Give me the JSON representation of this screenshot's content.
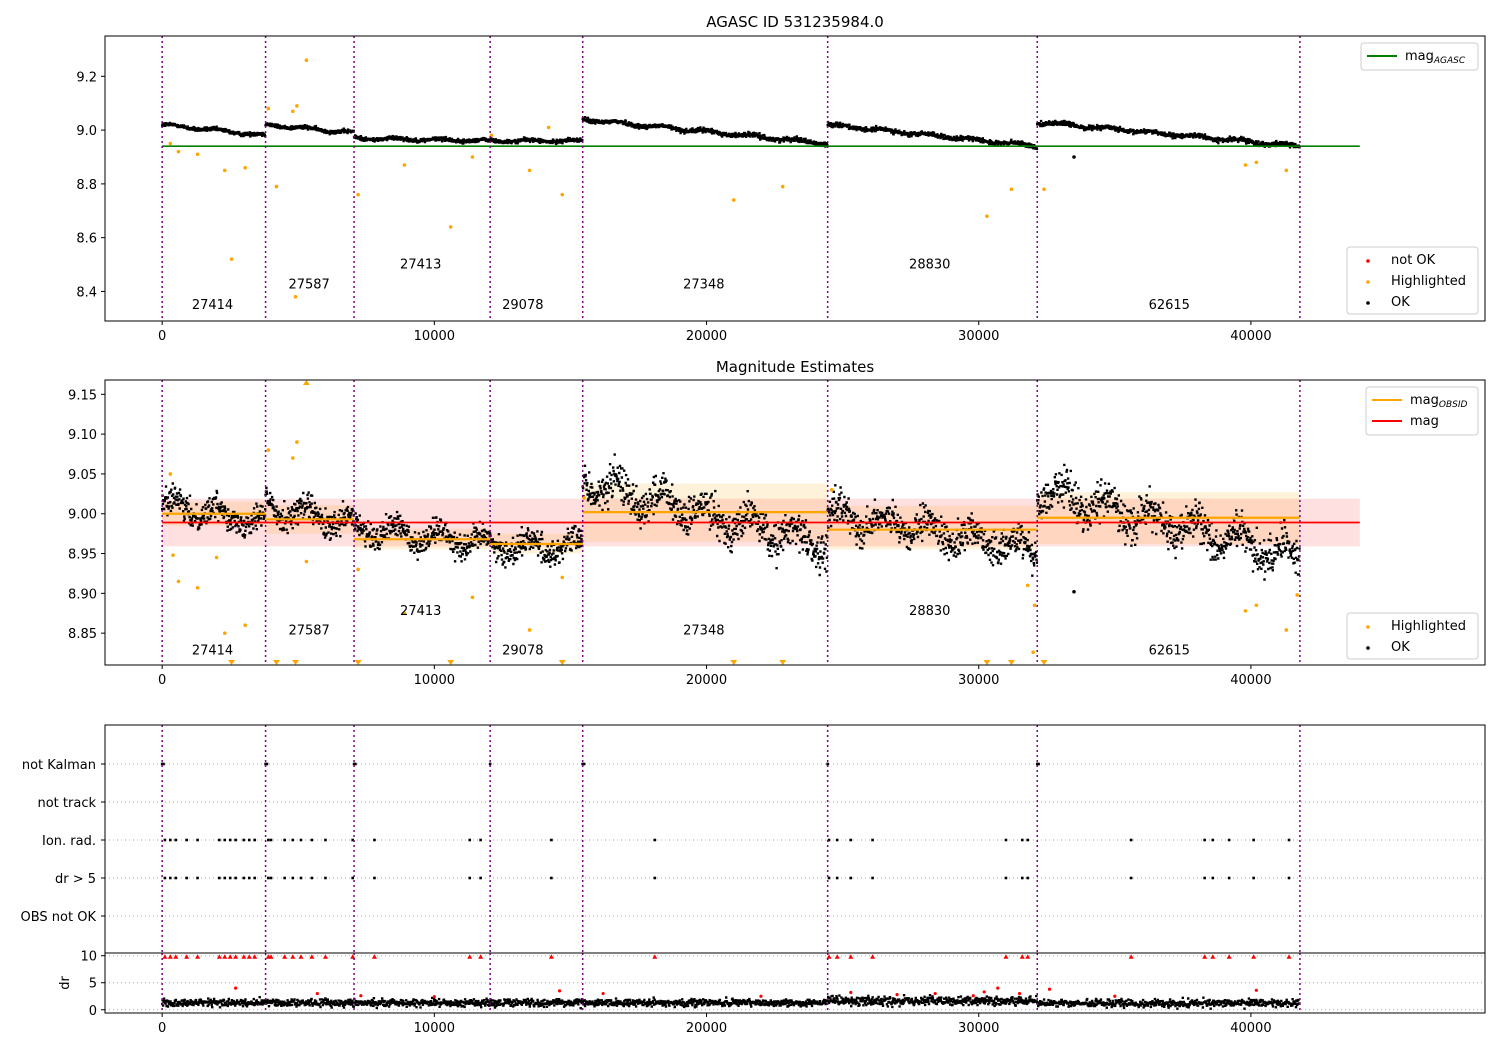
{
  "chart_data": [
    {
      "type": "scatter",
      "title": "AGASC ID 531235984.0",
      "xlim": [
        -2100,
        48600
      ],
      "ylim": [
        8.29,
        9.35
      ],
      "yticks": [
        8.4,
        8.6,
        8.8,
        9.0,
        9.2
      ],
      "ytick_labels": [
        "8.4",
        "8.6",
        "8.8",
        "9.0",
        "9.2"
      ],
      "xticks": [
        0,
        10000,
        20000,
        30000,
        40000
      ],
      "xtick_labels": [
        "0",
        "10000",
        "20000",
        "30000",
        "40000"
      ],
      "obs_boundaries": [
        0,
        3800,
        7050,
        12050,
        15450,
        24450,
        32150,
        41800
      ],
      "obs_labels": [
        {
          "text": "27414",
          "x": 1850,
          "y": 8.335
        },
        {
          "text": "27587",
          "x": 5400,
          "y": 8.41
        },
        {
          "text": "27413",
          "x": 9500,
          "y": 8.485
        },
        {
          "text": "29078",
          "x": 13250,
          "y": 8.335
        },
        {
          "text": "27348",
          "x": 19900,
          "y": 8.41
        },
        {
          "text": "28830",
          "x": 28200,
          "y": 8.485
        },
        {
          "text": "62615",
          "x": 37000,
          "y": 8.335
        }
      ],
      "lines": [
        {
          "name": "mag_AGASC",
          "y": 8.94,
          "x": [
            0,
            44000
          ],
          "color": "#008000"
        }
      ],
      "series": [
        {
          "name": "not OK",
          "color": "#ff0000",
          "points": []
        },
        {
          "name": "Highlighted",
          "color": "#ffa500",
          "points": [
            [
              300,
              8.95
            ],
            [
              600,
              8.92
            ],
            [
              1300,
              8.91
            ],
            [
              2300,
              8.85
            ],
            [
              2550,
              8.52
            ],
            [
              3050,
              8.86
            ],
            [
              4200,
              8.79
            ],
            [
              4900,
              8.38
            ],
            [
              5300,
              9.26
            ],
            [
              7200,
              8.76
            ],
            [
              8900,
              8.87
            ],
            [
              10600,
              8.64
            ],
            [
              11400,
              8.9
            ],
            [
              12100,
              8.98
            ],
            [
              13500,
              8.85
            ],
            [
              14700,
              8.76
            ],
            [
              21000,
              8.74
            ],
            [
              22800,
              8.79
            ],
            [
              30300,
              8.68
            ],
            [
              31200,
              8.78
            ],
            [
              32400,
              8.78
            ],
            [
              39800,
              8.87
            ],
            [
              40200,
              8.88
            ],
            [
              41300,
              8.85
            ],
            [
              3900,
              9.08
            ],
            [
              4800,
              9.07
            ],
            [
              4950,
              9.09
            ],
            [
              14200,
              9.01
            ]
          ]
        },
        {
          "name": "OK",
          "color": "#000000",
          "points": [
            [
              33500,
              8.9
            ]
          ]
        }
      ],
      "bands": [
        {
          "x": [
            0,
            3800
          ],
          "y0": 9.02,
          "y1": 8.98,
          "w": 0.012
        },
        {
          "x": [
            3800,
            7050
          ],
          "y0": 9.02,
          "y1": 8.99,
          "w": 0.012
        },
        {
          "x": [
            7050,
            12050
          ],
          "y0": 8.97,
          "y1": 8.96,
          "w": 0.012
        },
        {
          "x": [
            12050,
            15450
          ],
          "y0": 8.96,
          "y1": 8.96,
          "w": 0.012
        },
        {
          "x": [
            15450,
            24450
          ],
          "y0": 9.04,
          "y1": 8.95,
          "w": 0.014
        },
        {
          "x": [
            24450,
            32150
          ],
          "y0": 9.02,
          "y1": 8.94,
          "w": 0.014
        },
        {
          "x": [
            32150,
            41800
          ],
          "y0": 9.03,
          "y1": 8.94,
          "w": 0.014
        }
      ],
      "legend_top": {
        "position": "top-right",
        "entries": [
          {
            "label": "mag",
            "sub": "AGASC",
            "color": "#008000",
            "kind": "line"
          }
        ]
      },
      "legend_bottom": {
        "position": "bottom-right",
        "entries": [
          {
            "label": "not OK",
            "color": "#ff0000",
            "kind": "dot"
          },
          {
            "label": "Highlighted",
            "color": "#ffa500",
            "kind": "dot"
          },
          {
            "label": "OK",
            "color": "#000000",
            "kind": "dot"
          }
        ]
      }
    },
    {
      "type": "scatter",
      "title": "Magnitude Estimates",
      "xlim": [
        -2100,
        48600
      ],
      "ylim": [
        8.81,
        9.168
      ],
      "yticks": [
        8.85,
        8.9,
        8.95,
        9.0,
        9.05,
        9.1,
        9.15
      ],
      "ytick_labels": [
        "8.85",
        "8.90",
        "8.95",
        "9.00",
        "9.05",
        "9.10",
        "9.15"
      ],
      "xticks": [
        0,
        10000,
        20000,
        30000,
        40000
      ],
      "xtick_labels": [
        "0",
        "10000",
        "20000",
        "30000",
        "40000"
      ],
      "obs_boundaries": [
        0,
        3800,
        7050,
        12050,
        15450,
        24450,
        32150,
        41800
      ],
      "obs_labels": [
        {
          "text": "27414",
          "x": 1850,
          "y": 8.823
        },
        {
          "text": "27587",
          "x": 5400,
          "y": 8.848
        },
        {
          "text": "27413",
          "x": 9500,
          "y": 8.873
        },
        {
          "text": "29078",
          "x": 13250,
          "y": 8.823
        },
        {
          "text": "27348",
          "x": 19900,
          "y": 8.848
        },
        {
          "text": "28830",
          "x": 28200,
          "y": 8.873
        },
        {
          "text": "62615",
          "x": 37000,
          "y": 8.823
        }
      ],
      "mag_line": {
        "name": "mag",
        "y": 8.989,
        "x": [
          0,
          44000
        ],
        "band": [
          8.959,
          9.019
        ],
        "color": "#ff0000"
      },
      "obsid_mags": [
        {
          "x": [
            0,
            3800
          ],
          "y": 9.0,
          "band": [
            8.985,
            9.015
          ]
        },
        {
          "x": [
            3800,
            7050
          ],
          "y": 8.993,
          "band": [
            8.975,
            9.011
          ]
        },
        {
          "x": [
            7050,
            12050
          ],
          "y": 8.968,
          "band": [
            8.955,
            8.981
          ]
        },
        {
          "x": [
            12050,
            15450
          ],
          "y": 8.962,
          "band": [
            8.95,
            8.975
          ]
        },
        {
          "x": [
            15450,
            24450
          ],
          "y": 9.002,
          "band": [
            8.965,
            9.038
          ]
        },
        {
          "x": [
            24450,
            32150
          ],
          "y": 8.98,
          "band": [
            8.955,
            9.01
          ]
        },
        {
          "x": [
            32150,
            41800
          ],
          "y": 8.995,
          "band": [
            8.962,
            9.027
          ]
        }
      ],
      "series": [
        {
          "name": "Highlighted",
          "color": "#ffa500",
          "points": [
            [
              300,
              9.05
            ],
            [
              400,
              8.948
            ],
            [
              600,
              8.915
            ],
            [
              1300,
              8.907
            ],
            [
              2000,
              8.945
            ],
            [
              2300,
              8.85
            ],
            [
              3050,
              8.86
            ],
            [
              3900,
              9.08
            ],
            [
              4800,
              9.07
            ],
            [
              4950,
              9.09
            ],
            [
              5300,
              8.94
            ],
            [
              7200,
              8.93
            ],
            [
              8900,
              8.875
            ],
            [
              11400,
              8.895
            ],
            [
              13500,
              8.854
            ],
            [
              14700,
              8.92
            ],
            [
              15500,
              9.02
            ],
            [
              24600,
              9.03
            ],
            [
              31800,
              8.91
            ],
            [
              32050,
              8.885
            ],
            [
              32000,
              8.826
            ],
            [
              39800,
              8.878
            ],
            [
              40200,
              8.885
            ],
            [
              41300,
              8.854
            ],
            [
              41700,
              8.898
            ]
          ]
        },
        {
          "name": "OK",
          "color": "#000000",
          "points": [
            [
              33500,
              8.902
            ]
          ]
        }
      ],
      "bands": [
        {
          "x": [
            0,
            3800
          ],
          "y0": 9.012,
          "y1": 8.99,
          "w": 0.028
        },
        {
          "x": [
            3800,
            7050
          ],
          "y0": 9.01,
          "y1": 8.985,
          "w": 0.03
        },
        {
          "x": [
            7050,
            12050
          ],
          "y0": 8.98,
          "y1": 8.965,
          "w": 0.03
        },
        {
          "x": [
            12050,
            15450
          ],
          "y0": 8.96,
          "y1": 8.958,
          "w": 0.03
        },
        {
          "x": [
            15450,
            24450
          ],
          "y0": 9.04,
          "y1": 8.96,
          "w": 0.04
        },
        {
          "x": [
            24450,
            32150
          ],
          "y0": 9.0,
          "y1": 8.955,
          "w": 0.035
        },
        {
          "x": [
            32150,
            41800
          ],
          "y0": 9.03,
          "y1": 8.945,
          "w": 0.04
        }
      ],
      "offscale_markers": [
        {
          "x": 5300,
          "side": "top"
        },
        {
          "x": 2550,
          "side": "bottom"
        },
        {
          "x": 4200,
          "side": "bottom"
        },
        {
          "x": 4900,
          "side": "bottom"
        },
        {
          "x": 7200,
          "side": "bottom"
        },
        {
          "x": 10600,
          "side": "bottom"
        },
        {
          "x": 14700,
          "side": "bottom"
        },
        {
          "x": 21000,
          "side": "bottom"
        },
        {
          "x": 22800,
          "side": "bottom"
        },
        {
          "x": 30300,
          "side": "bottom"
        },
        {
          "x": 31200,
          "side": "bottom"
        },
        {
          "x": 32400,
          "side": "bottom"
        }
      ],
      "legend_top": {
        "position": "top-right",
        "entries": [
          {
            "label": "mag",
            "sub": "OBSID",
            "color": "#ffa500",
            "kind": "line"
          },
          {
            "label": "mag",
            "sub": "",
            "color": "#ff0000",
            "kind": "line"
          }
        ]
      },
      "legend_bottom": {
        "position": "bottom-right",
        "entries": [
          {
            "label": "Highlighted",
            "color": "#ffa500",
            "kind": "dot"
          },
          {
            "label": "OK",
            "color": "#000000",
            "kind": "dot"
          }
        ]
      }
    },
    {
      "type": "scatter",
      "title": "",
      "xlim": [
        -2100,
        48600
      ],
      "categories": [
        "not Kalman",
        "not track",
        "Ion. rad.",
        "dr > 5",
        "OBS not OK"
      ],
      "obs_boundaries": [
        0,
        3800,
        7050,
        12050,
        15450,
        24450,
        32150,
        41800
      ],
      "flags": {
        "not Kalman": [
          0,
          50,
          3800,
          3850,
          7050,
          7100,
          12050,
          15450,
          15500,
          24450,
          32150,
          32200
        ],
        "not track": [],
        "Ion. rad.": [
          100,
          300,
          500,
          900,
          1300,
          2100,
          2300,
          2500,
          2700,
          3000,
          3200,
          3400,
          3900,
          4000,
          4500,
          4800,
          5100,
          5500,
          6000,
          7000,
          7800,
          11300,
          11700,
          14300,
          18100,
          24500,
          24800,
          25300,
          26100,
          31000,
          31600,
          31800,
          35600,
          38300,
          38600,
          39200,
          40100,
          41400
        ],
        "dr > 5": [
          100,
          300,
          500,
          900,
          1300,
          2100,
          2300,
          2500,
          2700,
          3000,
          3200,
          3400,
          3900,
          4000,
          4500,
          4800,
          5100,
          5500,
          6000,
          7000,
          7800,
          11300,
          11700,
          14300,
          18100,
          24500,
          24800,
          25300,
          26100,
          31000,
          31600,
          31800,
          35600,
          38300,
          38600,
          39200,
          40100,
          41400
        ],
        "OBS not OK": []
      }
    },
    {
      "type": "scatter",
      "title": "",
      "ylabel": "dr",
      "xlim": [
        -2100,
        48600
      ],
      "ylim": [
        -0.6,
        10.5
      ],
      "yticks": [
        0,
        5,
        10
      ],
      "ytick_labels": [
        "0",
        "5",
        "10"
      ],
      "xticks": [
        0,
        10000,
        20000,
        30000,
        40000
      ],
      "xtick_labels": [
        "0",
        "10000",
        "20000",
        "30000",
        "40000"
      ],
      "obs_boundaries": [
        0,
        3800,
        7050,
        12050,
        15450,
        24450,
        32150,
        41800
      ],
      "clipped_x": [
        100,
        300,
        500,
        900,
        1300,
        2100,
        2300,
        2500,
        2700,
        3000,
        3200,
        3400,
        3900,
        4000,
        4500,
        4800,
        5100,
        5500,
        6000,
        7000,
        7800,
        11300,
        11700,
        14300,
        18100,
        24500,
        24800,
        25300,
        26100,
        31000,
        31600,
        31800,
        35600,
        38300,
        38600,
        39200,
        40100,
        41400
      ],
      "red_points": [
        [
          2700,
          4.0
        ],
        [
          5700,
          3.0
        ],
        [
          7300,
          2.6
        ],
        [
          10000,
          2.4
        ],
        [
          14600,
          3.5
        ],
        [
          16200,
          3.0
        ],
        [
          22000,
          2.5
        ],
        [
          25300,
          3.2
        ],
        [
          27000,
          2.8
        ],
        [
          28400,
          3.0
        ],
        [
          29800,
          2.6
        ],
        [
          30200,
          3.3
        ],
        [
          30700,
          4.0
        ],
        [
          31500,
          3.0
        ],
        [
          32600,
          3.8
        ],
        [
          35000,
          2.5
        ],
        [
          40200,
          3.6
        ]
      ],
      "bands": [
        {
          "x": [
            0,
            15450
          ],
          "mid": 1.3,
          "w": 1.2
        },
        {
          "x": [
            15450,
            24450
          ],
          "mid": 1.3,
          "w": 1.1
        },
        {
          "x": [
            24450,
            32150
          ],
          "mid": 1.6,
          "w": 1.5
        },
        {
          "x": [
            32150,
            41800
          ],
          "mid": 1.2,
          "w": 1.2
        }
      ]
    }
  ]
}
